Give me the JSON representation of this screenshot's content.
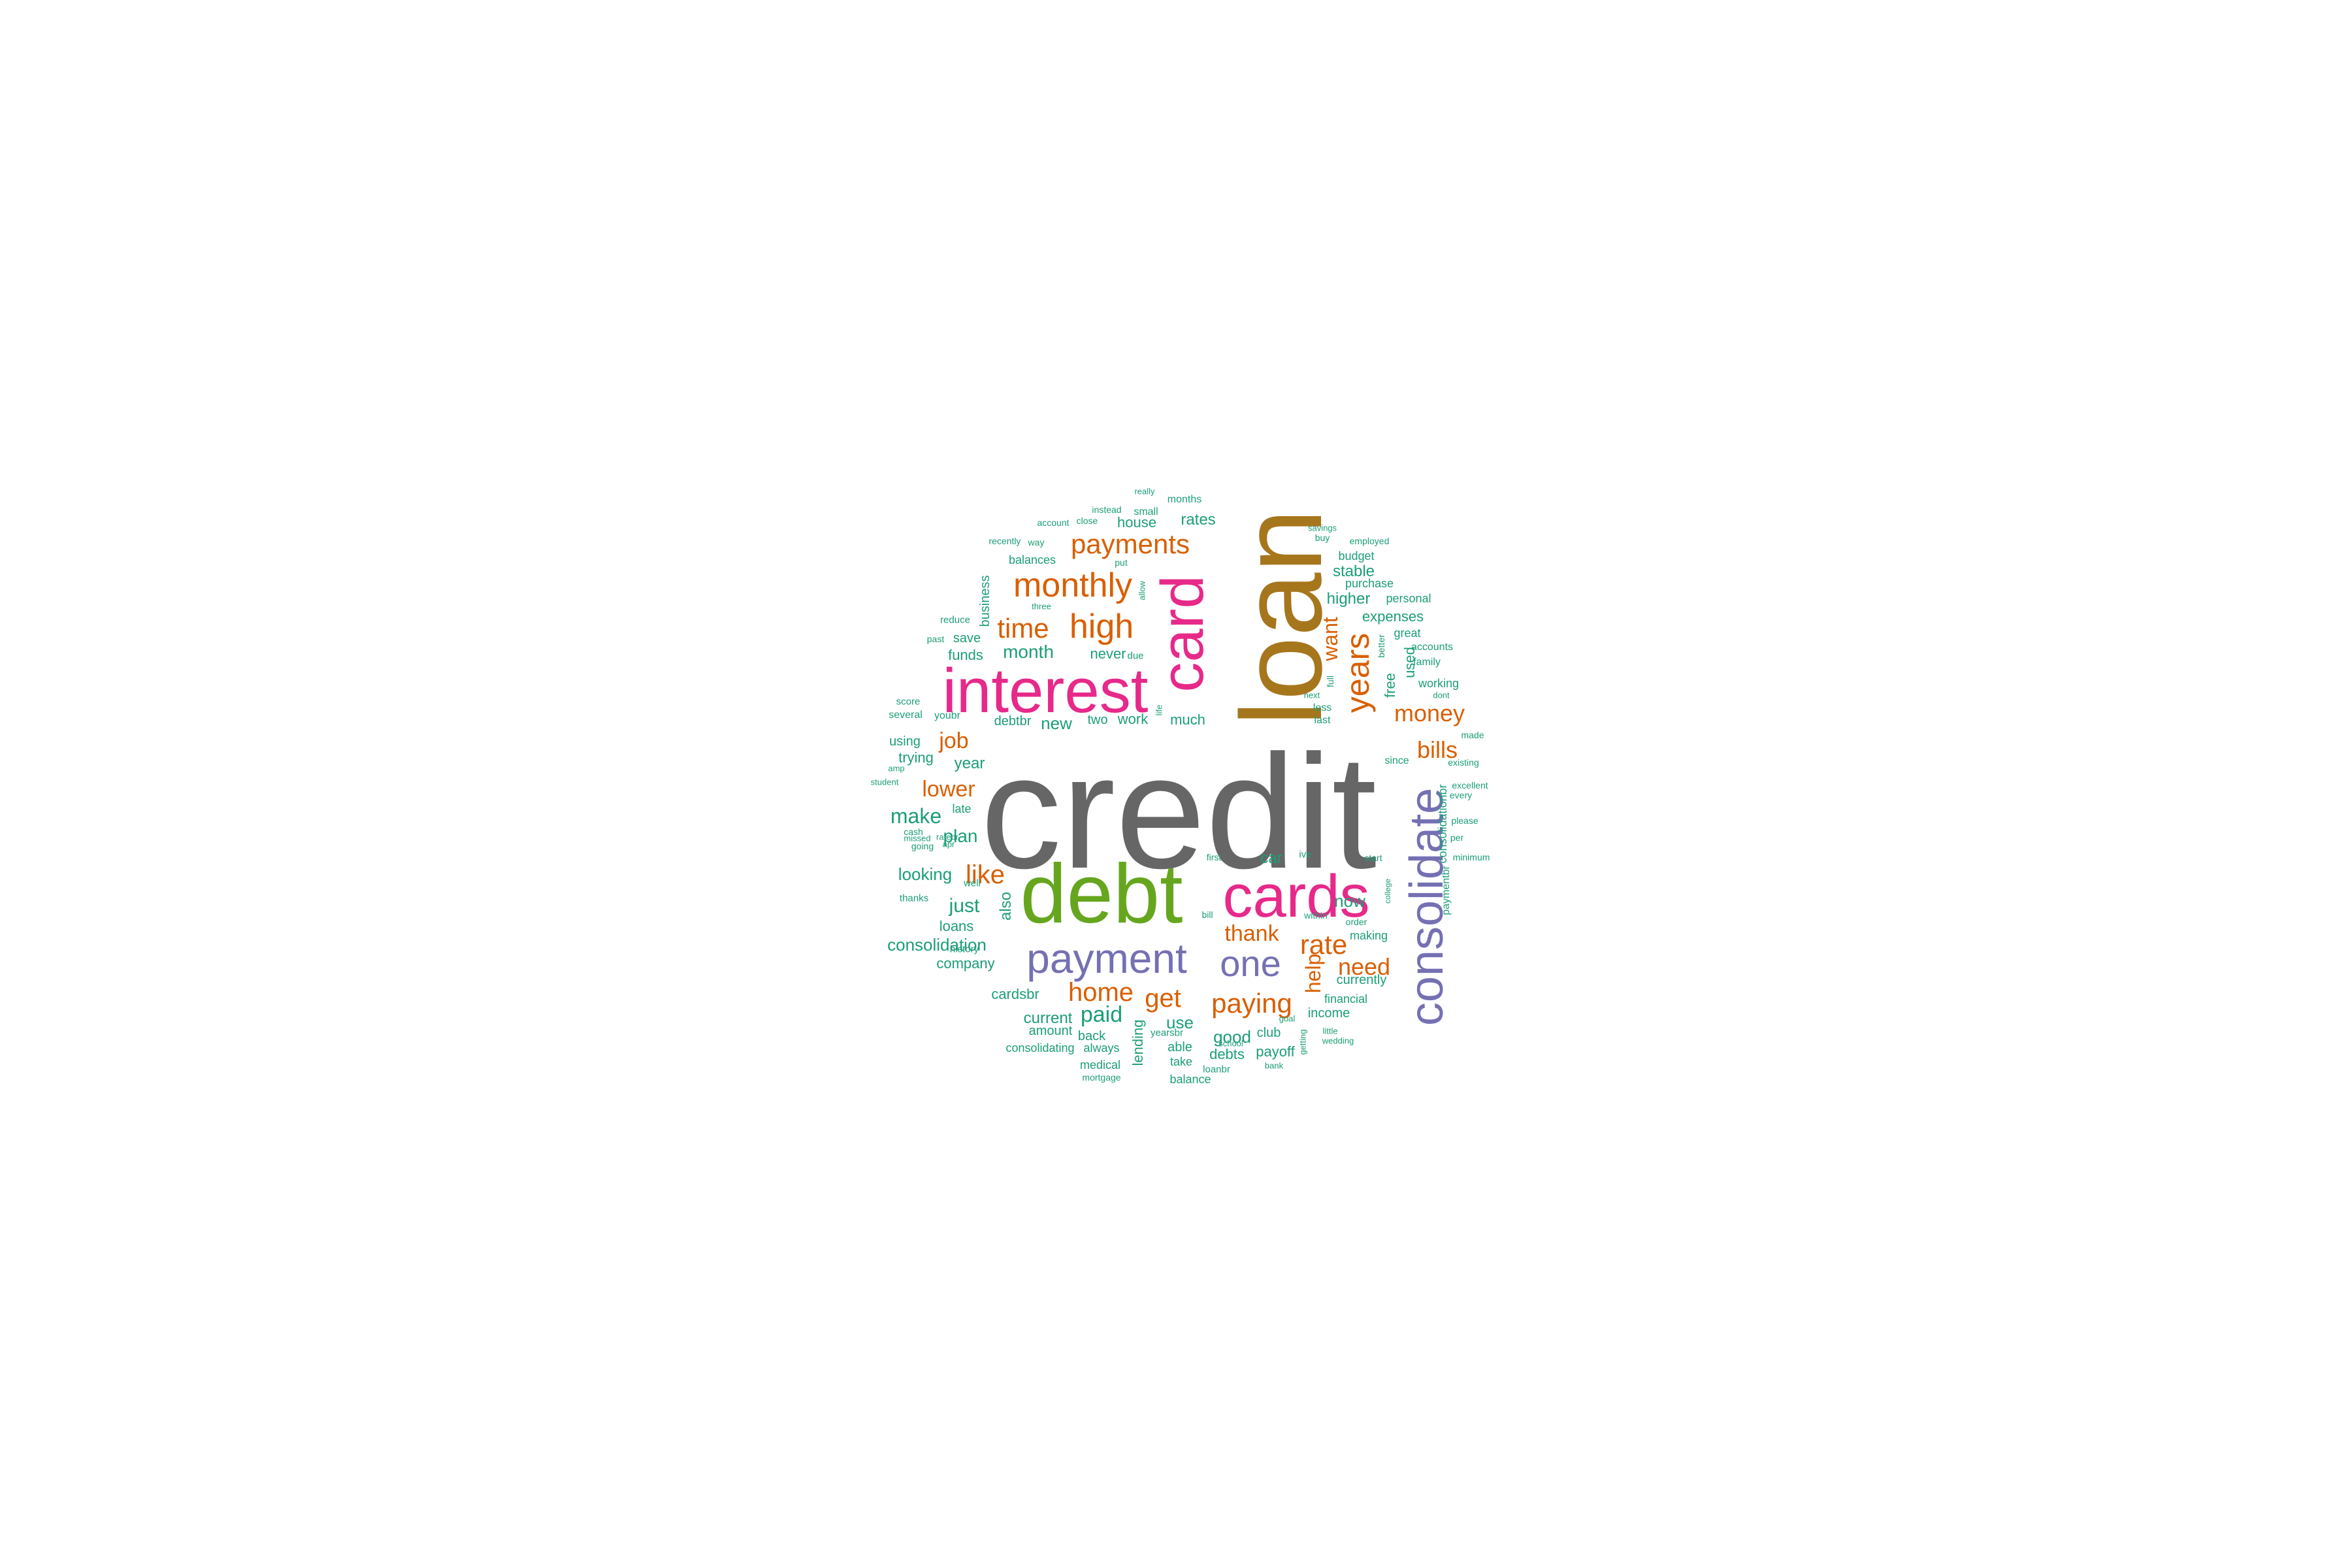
{
  "colors": {
    "gray": "#666666",
    "gold": "#a6761d",
    "pink": "#e7298a",
    "green": "#66a61e",
    "purple": "#7570b3",
    "orange": "#d95f02",
    "teal": "#1b9e77"
  },
  "words": [
    {
      "text": "credit",
      "color": "gray"
    },
    {
      "text": "loan",
      "color": "gold"
    },
    {
      "text": "debt",
      "color": "green"
    },
    {
      "text": "interest",
      "color": "pink"
    },
    {
      "text": "cards",
      "color": "pink"
    },
    {
      "text": "card",
      "color": "pink"
    },
    {
      "text": "consolidate",
      "color": "purple"
    },
    {
      "text": "payment",
      "color": "purple"
    },
    {
      "text": "one",
      "color": "purple"
    },
    {
      "text": "monthly",
      "color": "orange"
    },
    {
      "text": "high",
      "color": "orange"
    },
    {
      "text": "payments",
      "color": "orange"
    },
    {
      "text": "years",
      "color": "orange"
    },
    {
      "text": "time",
      "color": "orange"
    },
    {
      "text": "rate",
      "color": "orange"
    },
    {
      "text": "paying",
      "color": "orange"
    },
    {
      "text": "like",
      "color": "orange"
    },
    {
      "text": "money",
      "color": "orange"
    },
    {
      "text": "bills",
      "color": "orange"
    },
    {
      "text": "home",
      "color": "orange"
    },
    {
      "text": "get",
      "color": "orange"
    },
    {
      "text": "need",
      "color": "orange"
    },
    {
      "text": "lower",
      "color": "orange"
    },
    {
      "text": "thank",
      "color": "orange"
    },
    {
      "text": "help",
      "color": "orange"
    },
    {
      "text": "want",
      "color": "orange"
    },
    {
      "text": "job",
      "color": "orange"
    },
    {
      "text": "paid",
      "color": "teal"
    },
    {
      "text": "month",
      "color": "teal"
    },
    {
      "text": "make",
      "color": "teal"
    },
    {
      "text": "just",
      "color": "teal"
    },
    {
      "text": "consolidation",
      "color": "teal"
    },
    {
      "text": "plan",
      "color": "teal"
    },
    {
      "text": "looking",
      "color": "teal"
    },
    {
      "text": "year",
      "color": "teal"
    },
    {
      "text": "new",
      "color": "teal"
    },
    {
      "text": "now",
      "color": "teal"
    },
    {
      "text": "car",
      "color": "teal"
    },
    {
      "text": "use",
      "color": "teal"
    },
    {
      "text": "good",
      "color": "teal"
    },
    {
      "text": "current",
      "color": "teal"
    },
    {
      "text": "cardsbr",
      "color": "teal"
    },
    {
      "text": "loans",
      "color": "teal"
    },
    {
      "text": "company",
      "color": "teal"
    },
    {
      "text": "also",
      "color": "teal"
    },
    {
      "text": "free",
      "color": "teal"
    },
    {
      "text": "used",
      "color": "teal"
    },
    {
      "text": "stable",
      "color": "teal"
    },
    {
      "text": "higher",
      "color": "teal"
    },
    {
      "text": "expenses",
      "color": "teal"
    },
    {
      "text": "rates",
      "color": "teal"
    },
    {
      "text": "house",
      "color": "teal"
    },
    {
      "text": "never",
      "color": "teal"
    },
    {
      "text": "work",
      "color": "teal"
    },
    {
      "text": "two",
      "color": "teal"
    },
    {
      "text": "much",
      "color": "teal"
    },
    {
      "text": "debtbr",
      "color": "teal"
    },
    {
      "text": "funds",
      "color": "teal"
    },
    {
      "text": "save",
      "color": "teal"
    },
    {
      "text": "business",
      "color": "teal"
    },
    {
      "text": "balances",
      "color": "teal"
    },
    {
      "text": "trying",
      "color": "teal"
    },
    {
      "text": "using",
      "color": "teal"
    },
    {
      "text": "late",
      "color": "teal"
    },
    {
      "text": "amount",
      "color": "teal"
    },
    {
      "text": "back",
      "color": "teal"
    },
    {
      "text": "always",
      "color": "teal"
    },
    {
      "text": "consolidating",
      "color": "teal"
    },
    {
      "text": "medical",
      "color": "teal"
    },
    {
      "text": "lending",
      "color": "teal"
    },
    {
      "text": "able",
      "color": "teal"
    },
    {
      "text": "take",
      "color": "teal"
    },
    {
      "text": "balance",
      "color": "teal"
    },
    {
      "text": "debts",
      "color": "teal"
    },
    {
      "text": "payoff",
      "color": "teal"
    },
    {
      "text": "club",
      "color": "teal"
    },
    {
      "text": "income",
      "color": "teal"
    },
    {
      "text": "financial",
      "color": "teal"
    },
    {
      "text": "currently",
      "color": "teal"
    },
    {
      "text": "making",
      "color": "teal"
    },
    {
      "text": "working",
      "color": "teal"
    },
    {
      "text": "great",
      "color": "teal"
    },
    {
      "text": "personal",
      "color": "teal"
    },
    {
      "text": "purchase",
      "color": "teal"
    },
    {
      "text": "budget",
      "color": "teal"
    },
    {
      "text": "accounts",
      "color": "teal"
    },
    {
      "text": "family",
      "color": "teal"
    },
    {
      "text": "consolidationbr",
      "color": "teal"
    },
    {
      "text": "paymentbr",
      "color": "teal"
    },
    {
      "text": "months",
      "color": "teal"
    },
    {
      "text": "small",
      "color": "teal"
    },
    {
      "text": "last",
      "color": "teal"
    },
    {
      "text": "less",
      "color": "teal"
    },
    {
      "text": "since",
      "color": "teal"
    },
    {
      "text": "youbr",
      "color": "teal"
    },
    {
      "text": "several",
      "color": "teal"
    },
    {
      "text": "score",
      "color": "teal"
    },
    {
      "text": "reduce",
      "color": "teal"
    },
    {
      "text": "better",
      "color": "teal"
    },
    {
      "text": "full",
      "color": "teal"
    },
    {
      "text": "due",
      "color": "teal"
    },
    {
      "text": "put",
      "color": "teal"
    },
    {
      "text": "way",
      "color": "teal"
    },
    {
      "text": "yearsbr",
      "color": "teal"
    },
    {
      "text": "loanbr",
      "color": "teal"
    },
    {
      "text": "mortgage",
      "color": "teal"
    },
    {
      "text": "school",
      "color": "teal"
    },
    {
      "text": "bank",
      "color": "teal"
    },
    {
      "text": "goal",
      "color": "teal"
    },
    {
      "text": "little",
      "color": "teal"
    },
    {
      "text": "wedding",
      "color": "teal"
    },
    {
      "text": "getting",
      "color": "teal"
    },
    {
      "text": "start",
      "color": "teal"
    },
    {
      "text": "order",
      "color": "teal"
    },
    {
      "text": "within",
      "color": "teal"
    },
    {
      "text": "first",
      "color": "teal"
    },
    {
      "text": "ive",
      "color": "teal"
    },
    {
      "text": "bill",
      "color": "teal"
    },
    {
      "text": "life",
      "color": "teal"
    },
    {
      "text": "next",
      "color": "teal"
    },
    {
      "text": "college",
      "color": "teal"
    },
    {
      "text": "minimum",
      "color": "teal"
    },
    {
      "text": "per",
      "color": "teal"
    },
    {
      "text": "please",
      "color": "teal"
    },
    {
      "text": "every",
      "color": "teal"
    },
    {
      "text": "excellent",
      "color": "teal"
    },
    {
      "text": "existing",
      "color": "teal"
    },
    {
      "text": "made",
      "color": "teal"
    },
    {
      "text": "dont",
      "color": "teal"
    },
    {
      "text": "employed",
      "color": "teal"
    },
    {
      "text": "buy",
      "color": "teal"
    },
    {
      "text": "savings",
      "color": "teal"
    },
    {
      "text": "three",
      "color": "teal"
    },
    {
      "text": "allow",
      "color": "teal"
    },
    {
      "text": "instead",
      "color": "teal"
    },
    {
      "text": "really",
      "color": "teal"
    },
    {
      "text": "account",
      "color": "teal"
    },
    {
      "text": "close",
      "color": "teal"
    },
    {
      "text": "recently",
      "color": "teal"
    },
    {
      "text": "past",
      "color": "teal"
    },
    {
      "text": "amp",
      "color": "teal"
    },
    {
      "text": "student",
      "color": "teal"
    },
    {
      "text": "cash",
      "color": "teal"
    },
    {
      "text": "going",
      "color": "teal"
    },
    {
      "text": "apr",
      "color": "teal"
    },
    {
      "text": "missed",
      "color": "teal"
    },
    {
      "text": "ratebr",
      "color": "teal"
    },
    {
      "text": "well",
      "color": "teal"
    },
    {
      "text": "thanks",
      "color": "teal"
    },
    {
      "text": "history",
      "color": "teal"
    }
  ]
}
